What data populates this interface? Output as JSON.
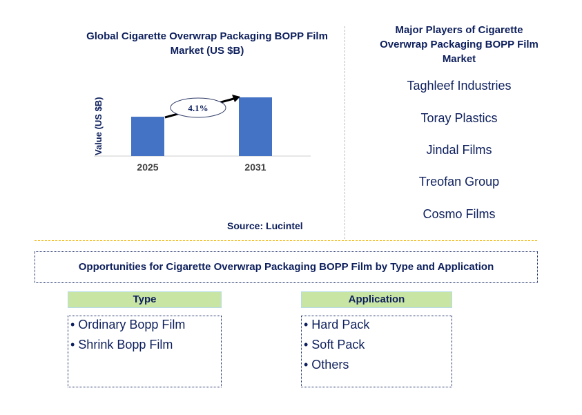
{
  "chart_data": {
    "type": "bar",
    "title": "Global Cigarette Overwrap Packaging BOPP Film Market (US $B)",
    "categories": [
      "2025",
      "2031"
    ],
    "values": [
      0.67,
      1.0
    ],
    "ylabel": "Value (US $B)",
    "xlabel": "",
    "ylim": [
      0,
      1
    ],
    "annotation": "4.1%",
    "bar_color": "#4472c4"
  },
  "source": "Source: Lucintel",
  "players": {
    "title": "Major Players of Cigarette Overwrap Packaging BOPP Film Market",
    "items": [
      "Taghleef Industries",
      "Toray Plastics",
      "Jindal Films",
      "Treofan Group",
      "Cosmo Films"
    ]
  },
  "opportunities": {
    "title": "Opportunities for Cigarette Overwrap Packaging BOPP Film by Type and Application",
    "type": {
      "label": "Type",
      "items": [
        "• Ordinary Bopp Film",
        "• Shrink Bopp Film"
      ]
    },
    "application": {
      "label": "Application",
      "items": [
        "• Hard Pack",
        "• Soft Pack",
        "• Others"
      ]
    }
  }
}
